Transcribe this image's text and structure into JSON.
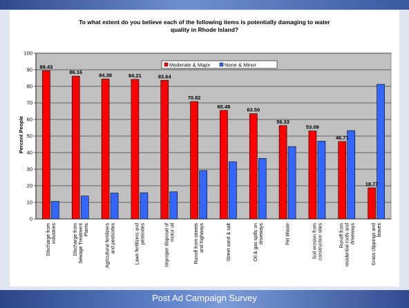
{
  "slide": {
    "footer": "Post Ad Campaign Survey"
  },
  "chart_data": {
    "type": "bar",
    "title": "To what extent do you believe each of the following items is potentially damaging to water quality in Rhode Island?",
    "title_lines": [
      "To what extent do you believe each of the following items is potentially damaging to water",
      "quality in Rhode Island?"
    ],
    "ylabel": "Percent People",
    "xlabel": "",
    "ylim": [
      0,
      100
    ],
    "yticks": [
      0,
      10,
      20,
      30,
      40,
      50,
      60,
      70,
      80,
      90,
      100
    ],
    "grid": true,
    "legend_position": "top-center",
    "categories": [
      [
        "Discharge from",
        "industries"
      ],
      [
        "Discharge from",
        "Sewage Treatment",
        "Plants"
      ],
      [
        "Agricultural fertilizers",
        "and pesticides"
      ],
      [
        "Lawn fertilizers and",
        "pesticides"
      ],
      [
        "Improper disposal of",
        "motor oil"
      ],
      [
        "Runoff from streets",
        "and highways"
      ],
      [
        "Street sand & salt"
      ],
      [
        "Oil & gas spills on",
        "driveways"
      ],
      [
        "Pet Waste"
      ],
      [
        "Soil erosion from",
        "construction sites"
      ],
      [
        "Runoff from",
        "residential roofs and",
        "driveways"
      ],
      [
        "Grass clippings and",
        "leaves"
      ]
    ],
    "series": [
      {
        "name": "Moderate & Major",
        "color": "#ff0000",
        "values": [
          89.43,
          86.16,
          84.38,
          84.21,
          83.64,
          70.82,
          65.48,
          63.5,
          56.33,
          53.09,
          46.71,
          18.77
        ],
        "labels": [
          "89.43",
          "86.16",
          "84.38",
          "84.21",
          "83.64",
          "70.82",
          "65.48",
          "63.50",
          "56.33",
          "53.09",
          "46.71",
          "18.77"
        ]
      },
      {
        "name": "None & Minor",
        "color": "#3366ff",
        "values": [
          10.57,
          13.84,
          15.62,
          15.79,
          16.36,
          29.18,
          34.52,
          36.5,
          43.67,
          46.91,
          53.29,
          81.23
        ]
      }
    ],
    "colors": {
      "plot_background": "#c0c0c0",
      "gridline": "#000000"
    }
  }
}
